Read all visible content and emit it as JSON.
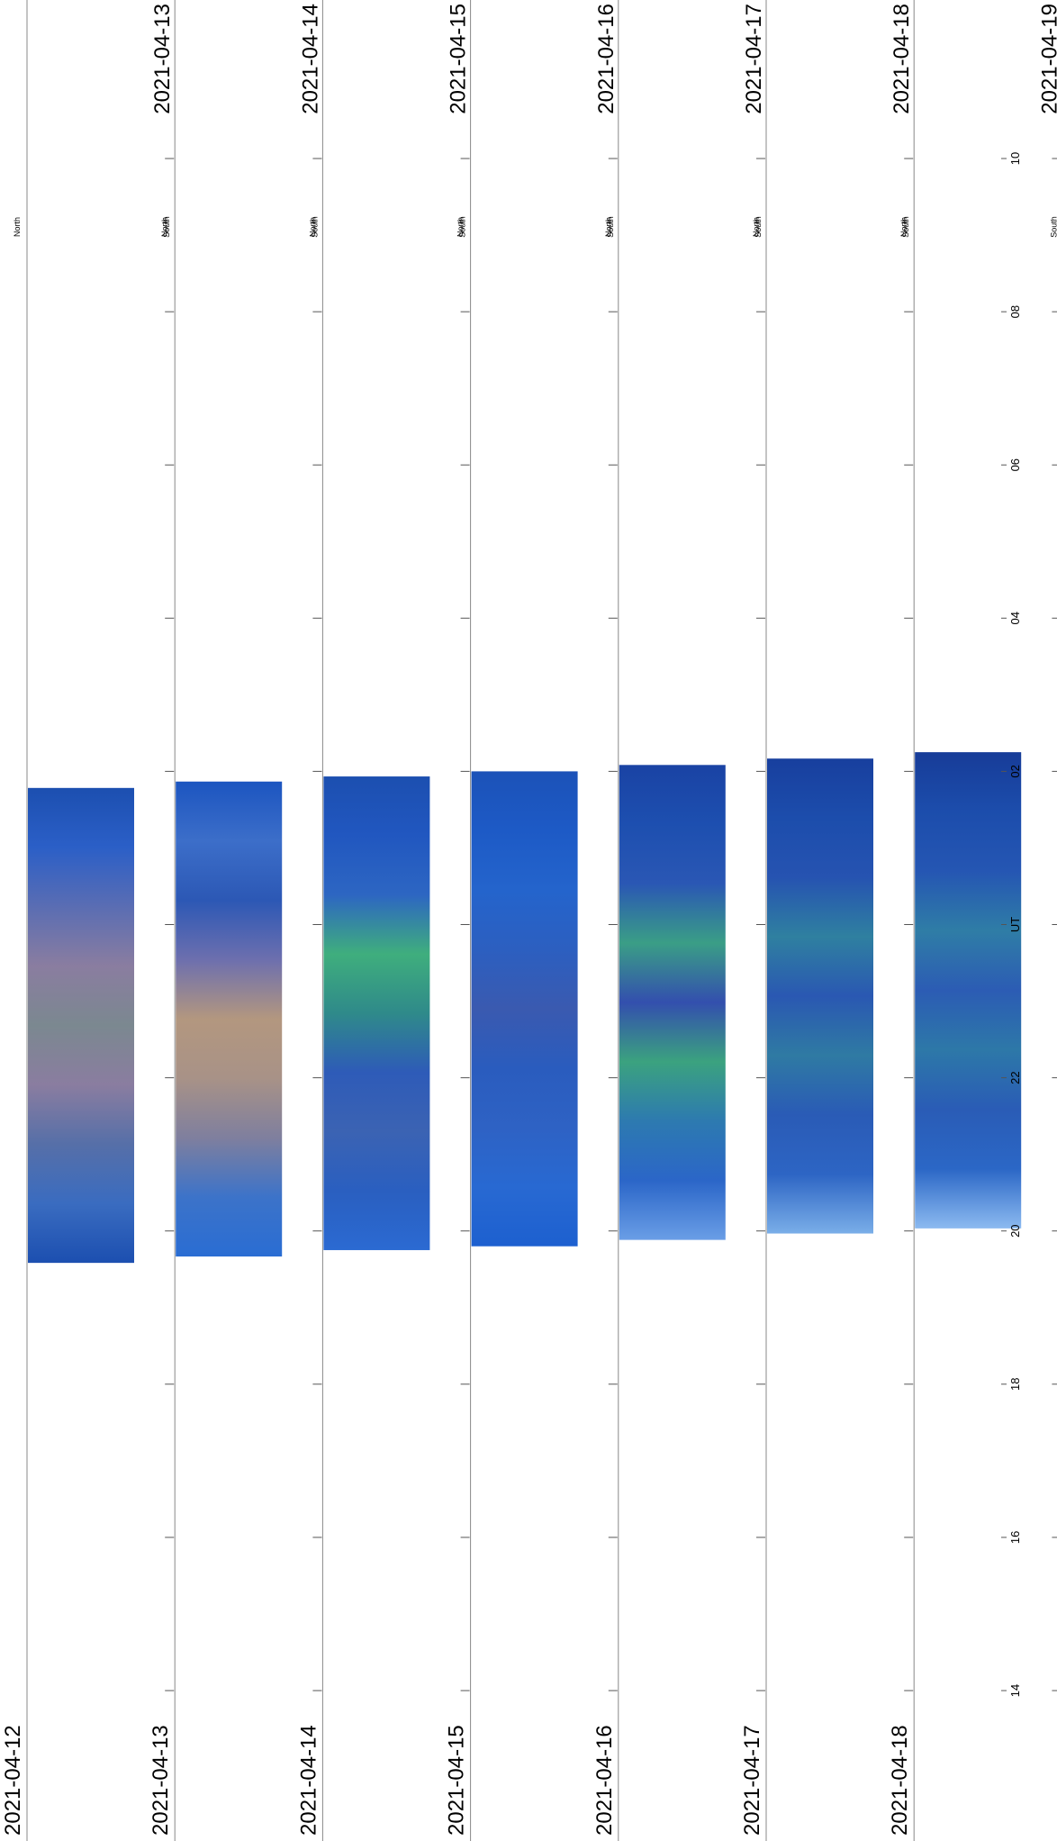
{
  "chart_data": {
    "type": "heatmap",
    "title": "",
    "xlabel": "UT",
    "orientation": "rotated-90",
    "time_axis": {
      "ticks": [
        "14",
        "16",
        "18",
        "20",
        "22",
        "UT",
        "02",
        "04",
        "06",
        "08",
        "10"
      ],
      "direction": "bottom-to-top"
    },
    "north_label": "North",
    "south_label": "South",
    "nights": [
      {
        "start_date": "2021-04-12",
        "end_date": "2021-04-13",
        "data_start_ut": "19:35",
        "data_end_ut": "01:47",
        "colors": [
          "#1c4fb0",
          "#3a6cc0",
          "#566fa8",
          "#8a7da0",
          "#7b8890",
          "#8a7da0",
          "#5a6db3",
          "#2b5fc7",
          "#1c4fb0"
        ]
      },
      {
        "start_date": "2021-04-13",
        "end_date": "2021-04-14",
        "data_start_ut": "19:40",
        "data_end_ut": "01:52",
        "colors": [
          "#2a6dd3",
          "#3c73c9",
          "#7f7f9e",
          "#a89287",
          "#b3977f",
          "#6d6fae",
          "#2c58b5",
          "#3c6ec9",
          "#1c55c0"
        ]
      },
      {
        "start_date": "2021-04-14",
        "end_date": "2021-04-15",
        "data_start_ut": "19:45",
        "data_end_ut": "01:56",
        "colors": [
          "#2b6ad2",
          "#2a5fc0",
          "#3b63b3",
          "#2e5bb8",
          "#2f8a8a",
          "#3fae7d",
          "#2d66c2",
          "#2157c0",
          "#1c4fb0"
        ]
      },
      {
        "start_date": "2021-04-15",
        "end_date": "2021-04-16",
        "data_start_ut": "19:48",
        "data_end_ut": "02:00",
        "colors": [
          "#1d60d0",
          "#2869d2",
          "#2e62c4",
          "#2a5cbe",
          "#3a5ab0",
          "#2c5fc0",
          "#2464cc",
          "#1d5ac6",
          "#1c52b8"
        ]
      },
      {
        "start_date": "2021-04-16",
        "end_date": "2021-04-17",
        "data_start_ut": "19:53",
        "data_end_ut": "02:05",
        "colors": [
          "#6a9ee6",
          "#2b66c8",
          "#2d7ab0",
          "#3ba27f",
          "#334fae",
          "#3a9e86",
          "#2a57b4",
          "#1d4fb0",
          "#1a43a4"
        ]
      },
      {
        "start_date": "2021-04-17",
        "end_date": "2021-04-18",
        "data_start_ut": "19:58",
        "data_end_ut": "02:10",
        "colors": [
          "#7aaee8",
          "#2d65c4",
          "#2a5bb6",
          "#2f7aa3",
          "#2a58b2",
          "#2f80a0",
          "#2653b1",
          "#1c4dac",
          "#183f9e"
        ]
      },
      {
        "start_date": "2021-04-18",
        "end_date": "2021-04-19",
        "data_start_ut": "20:02",
        "data_end_ut": "02:15",
        "colors": [
          "#8cbaf0",
          "#2b67c6",
          "#2a5cb6",
          "#2d78a8",
          "#2c5cb4",
          "#2f7da6",
          "#2556b3",
          "#1c4dac",
          "#173c98"
        ]
      }
    ]
  }
}
